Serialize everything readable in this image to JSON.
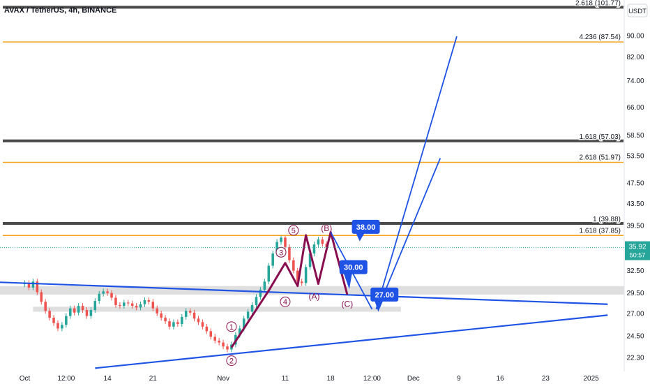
{
  "header": {
    "symbol_title": "AVAX / TetherUS, 4h, BINANCE",
    "currency": "USDT"
  },
  "colors": {
    "candle_up": "#26a69a",
    "candle_down": "#ef5350",
    "wave_line": "#880e4f",
    "trend_blue": "#1e53e5",
    "fib_orange": "#f7a21b",
    "fib_dark": "#4a4a4a",
    "zone_gray": "#d9d9d9",
    "price_tag": "#26a69a"
  },
  "price_tag": {
    "value": "35.92",
    "countdown": "50:57"
  },
  "chart_data": {
    "type": "candlestick",
    "title": "AVAX / TetherUS, 4h, BINANCE",
    "y_scale": "log",
    "ylim": [
      21.0,
      105.0
    ],
    "y_ticks": [
      {
        "value": 22.3,
        "label": "22.30"
      },
      {
        "value": 24.5,
        "label": "24.50"
      },
      {
        "value": 27.0,
        "label": "27.00"
      },
      {
        "value": 29.5,
        "label": "29.50"
      },
      {
        "value": 32.5,
        "label": "32.50"
      },
      {
        "value": 39.5,
        "label": "39.50"
      },
      {
        "value": 43.5,
        "label": "43.50"
      },
      {
        "value": 47.5,
        "label": "47.50"
      },
      {
        "value": 53.5,
        "label": "53.50"
      },
      {
        "value": 58.5,
        "label": "58.50"
      },
      {
        "value": 66.0,
        "label": "66.00"
      },
      {
        "value": 74.0,
        "label": "74.00"
      },
      {
        "value": 82.0,
        "label": "82.00"
      },
      {
        "value": 90.0,
        "label": "90.00"
      }
    ],
    "x_ticks": [
      {
        "value": 0,
        "label": "Oct"
      },
      {
        "value": 10,
        "label": "12:00"
      },
      {
        "value": 20,
        "label": "14"
      },
      {
        "value": 31,
        "label": "21"
      },
      {
        "value": 48,
        "label": "Nov"
      },
      {
        "value": 63,
        "label": "11"
      },
      {
        "value": 74,
        "label": "18"
      },
      {
        "value": 84,
        "label": "12:00"
      },
      {
        "value": 94,
        "label": "Dec"
      },
      {
        "value": 105,
        "label": "9"
      },
      {
        "value": 115,
        "label": "16"
      },
      {
        "value": 126,
        "label": "23"
      },
      {
        "value": 137,
        "label": "2025"
      }
    ],
    "x_range": [
      -6,
      145
    ],
    "candles_close": [
      30.8,
      30.2,
      31.0,
      29.6,
      28.4,
      27.3,
      26.5,
      25.9,
      25.3,
      25.7,
      26.7,
      27.6,
      27.1,
      27.9,
      27.4,
      26.7,
      27.4,
      28.5,
      29.4,
      29.7,
      29.5,
      28.9,
      28.0,
      27.9,
      28.3,
      28.2,
      27.9,
      27.7,
      28.1,
      28.6,
      28.4,
      27.6,
      27.0,
      26.5,
      26.1,
      25.5,
      26.0,
      25.8,
      26.6,
      27.3,
      27.1,
      26.4,
      26.0,
      25.5,
      25.0,
      24.4,
      24.0,
      23.8,
      23.4,
      23.1,
      23.6,
      24.6,
      25.3,
      26.4,
      27.2,
      28.0,
      29.0,
      29.9,
      31.0,
      33.2,
      35.0,
      36.8,
      37.5,
      36.0,
      34.0,
      32.5,
      31.0,
      30.8,
      33.0,
      35.0,
      36.4,
      37.2,
      36.5,
      35.92
    ],
    "fib_levels": [
      {
        "label": "2.618 (101.77)",
        "value": 101.77,
        "color": "fib_dark"
      },
      {
        "label": "4.236 (87.54)",
        "value": 87.54,
        "color": "fib_orange"
      },
      {
        "label": "1.618 (57.03)",
        "value": 57.03,
        "color": "fib_dark"
      },
      {
        "label": "2.618 (51.97)",
        "value": 51.97,
        "color": "fib_orange"
      },
      {
        "label": "1 (39.88)",
        "value": 39.88,
        "color": "fib_dark"
      },
      {
        "label": "1.618 (37.85)",
        "value": 37.85,
        "color": "fib_orange"
      }
    ],
    "zones": [
      {
        "x": [
          -6,
          145
        ],
        "y": [
          29.3,
          30.4
        ]
      },
      {
        "x": [
          2,
          91
        ],
        "y": [
          27.2,
          27.8
        ]
      }
    ],
    "trendlines": [
      {
        "x": [
          -6,
          141
        ],
        "y": [
          30.9,
          28.1
        ]
      },
      {
        "x": [
          17,
          141
        ],
        "y": [
          21.3,
          26.8
        ]
      }
    ],
    "impulse_path": {
      "x": [
        50,
        59,
        63,
        66,
        68,
        71,
        74,
        78
      ],
      "y": [
        23.3,
        29.8,
        33.6,
        30.4,
        37.9,
        30.7,
        38.4,
        29.3
      ]
    },
    "wave_labels": [
      {
        "x": 50,
        "y": 25.5,
        "label": "1"
      },
      {
        "x": 50,
        "y": 22.0,
        "label": "2"
      },
      {
        "x": 62,
        "y": 35.2,
        "label": "3"
      },
      {
        "x": 63,
        "y": 28.4,
        "label": "4"
      },
      {
        "x": 65,
        "y": 38.7,
        "label": "5"
      }
    ],
    "abc_labels": [
      {
        "x": 70,
        "y": 28.7,
        "label": "(A)"
      },
      {
        "x": 73,
        "y": 38.6,
        "label": "(B)"
      },
      {
        "x": 78,
        "y": 27.8,
        "label": "(C)"
      }
    ],
    "projection_lines": [
      {
        "x": [
          74,
          84
        ],
        "y": [
          38.4,
          27.5
        ]
      },
      {
        "x": [
          85,
          104.5
        ],
        "y": [
          27.5,
          89.7
        ]
      },
      {
        "x": [
          86,
          100.5
        ],
        "y": [
          28.3,
          52.9
        ]
      }
    ],
    "targets": [
      {
        "label": "38.00",
        "x": 82.5,
        "y": 39.3,
        "anchor_x": 81,
        "anchor_y": 36.9
      },
      {
        "label": "30.00",
        "x": 79.5,
        "y": 33.0,
        "anchor_x": 78.5,
        "anchor_y": 30.0
      },
      {
        "label": "27.00",
        "x": 87.0,
        "y": 29.3,
        "anchor_x": 85.5,
        "anchor_y": 27.2
      }
    ]
  }
}
